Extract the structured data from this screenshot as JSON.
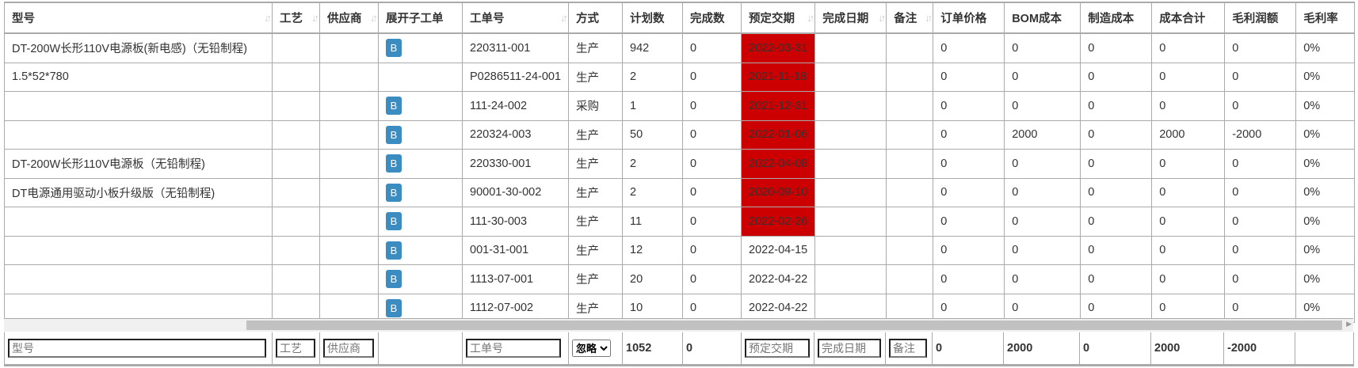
{
  "columns": [
    "型号",
    "工艺",
    "供应商",
    "展开子工单",
    "工单号",
    "方式",
    "计划数",
    "完成数",
    "预定交期",
    "完成日期",
    "备注",
    "订单价格",
    "BOM成本",
    "制造成本",
    "成本合计",
    "毛利润额",
    "毛利率"
  ],
  "sortable": [
    true,
    true,
    true,
    false,
    true,
    false,
    false,
    false,
    true,
    true,
    true,
    false,
    false,
    false,
    false,
    false,
    false
  ],
  "button_label": "B",
  "late_color": "#cc0000",
  "rows": [
    {
      "model": "DT-200W长形110V电源板(新电感)（无铅制程)",
      "craft": "",
      "supplier": "",
      "expand": true,
      "order": "220311-001",
      "mode": "生产",
      "plan": "942",
      "done": "0",
      "due": "2022-03-31",
      "due_late": true,
      "finish": "",
      "note": "",
      "price": "0",
      "bom": "0",
      "mfg": "0",
      "total": "0",
      "profit": "0",
      "rate": "0%"
    },
    {
      "model": "1.5*52*780",
      "craft": "",
      "supplier": "",
      "expand": false,
      "order": "P0286511-24-001",
      "mode": "生产",
      "plan": "2",
      "done": "0",
      "due": "2021-11-18",
      "due_late": true,
      "finish": "",
      "note": "",
      "price": "0",
      "bom": "0",
      "mfg": "0",
      "total": "0",
      "profit": "0",
      "rate": "0%"
    },
    {
      "model": "",
      "craft": "",
      "supplier": "",
      "expand": true,
      "order": "111-24-002",
      "mode": "采购",
      "plan": "1",
      "done": "0",
      "due": "2021-12-31",
      "due_late": true,
      "finish": "",
      "note": "",
      "price": "0",
      "bom": "0",
      "mfg": "0",
      "total": "0",
      "profit": "0",
      "rate": "0%"
    },
    {
      "model": "",
      "craft": "",
      "supplier": "",
      "expand": true,
      "order": "220324-003",
      "mode": "生产",
      "plan": "50",
      "done": "0",
      "due": "2022-01-06",
      "due_late": true,
      "finish": "",
      "note": "",
      "price": "0",
      "bom": "2000",
      "mfg": "0",
      "total": "2000",
      "profit": "-2000",
      "rate": "0%"
    },
    {
      "model": "DT-200W长形110V电源板（无铅制程)",
      "craft": "",
      "supplier": "",
      "expand": true,
      "order": "220330-001",
      "mode": "生产",
      "plan": "2",
      "done": "0",
      "due": "2022-04-08",
      "due_late": true,
      "finish": "",
      "note": "",
      "price": "0",
      "bom": "0",
      "mfg": "0",
      "total": "0",
      "profit": "0",
      "rate": "0%"
    },
    {
      "model": "DT电源通用驱动小板升级版（无铅制程)",
      "craft": "",
      "supplier": "",
      "expand": true,
      "order": "90001-30-002",
      "mode": "生产",
      "plan": "2",
      "done": "0",
      "due": "2020-09-10",
      "due_late": true,
      "finish": "",
      "note": "",
      "price": "0",
      "bom": "0",
      "mfg": "0",
      "total": "0",
      "profit": "0",
      "rate": "0%"
    },
    {
      "model": "",
      "craft": "",
      "supplier": "",
      "expand": true,
      "order": "111-30-003",
      "mode": "生产",
      "plan": "11",
      "done": "0",
      "due": "2022-02-26",
      "due_late": true,
      "finish": "",
      "note": "",
      "price": "0",
      "bom": "0",
      "mfg": "0",
      "total": "0",
      "profit": "0",
      "rate": "0%"
    },
    {
      "model": "",
      "craft": "",
      "supplier": "",
      "expand": true,
      "order": "001-31-001",
      "mode": "生产",
      "plan": "12",
      "done": "0",
      "due": "2022-04-15",
      "due_late": false,
      "finish": "",
      "note": "",
      "price": "0",
      "bom": "0",
      "mfg": "0",
      "total": "0",
      "profit": "0",
      "rate": "0%"
    },
    {
      "model": "",
      "craft": "",
      "supplier": "",
      "expand": true,
      "order": "1113-07-001",
      "mode": "生产",
      "plan": "20",
      "done": "0",
      "due": "2022-04-22",
      "due_late": false,
      "finish": "",
      "note": "",
      "price": "0",
      "bom": "0",
      "mfg": "0",
      "total": "0",
      "profit": "0",
      "rate": "0%"
    },
    {
      "model": "",
      "craft": "",
      "supplier": "",
      "expand": true,
      "order": "1112-07-002",
      "mode": "生产",
      "plan": "10",
      "done": "0",
      "due": "2022-04-22",
      "due_late": false,
      "finish": "",
      "note": "",
      "price": "0",
      "bom": "0",
      "mfg": "0",
      "total": "0",
      "profit": "0",
      "rate": "0%"
    }
  ],
  "footer": {
    "model_ph": "型号",
    "craft_ph": "工艺",
    "supplier_ph": "供应商",
    "order_ph": "工单号",
    "mode_select": "忽略",
    "plan_sum": "1052",
    "done_sum": "0",
    "due_ph": "预定交期",
    "finish_ph": "完成日期",
    "note_ph": "备注",
    "price_sum": "0",
    "bom_sum": "2000",
    "mfg_sum": "0",
    "total_sum": "2000",
    "profit_sum": "-2000",
    "rate_sum": ""
  }
}
